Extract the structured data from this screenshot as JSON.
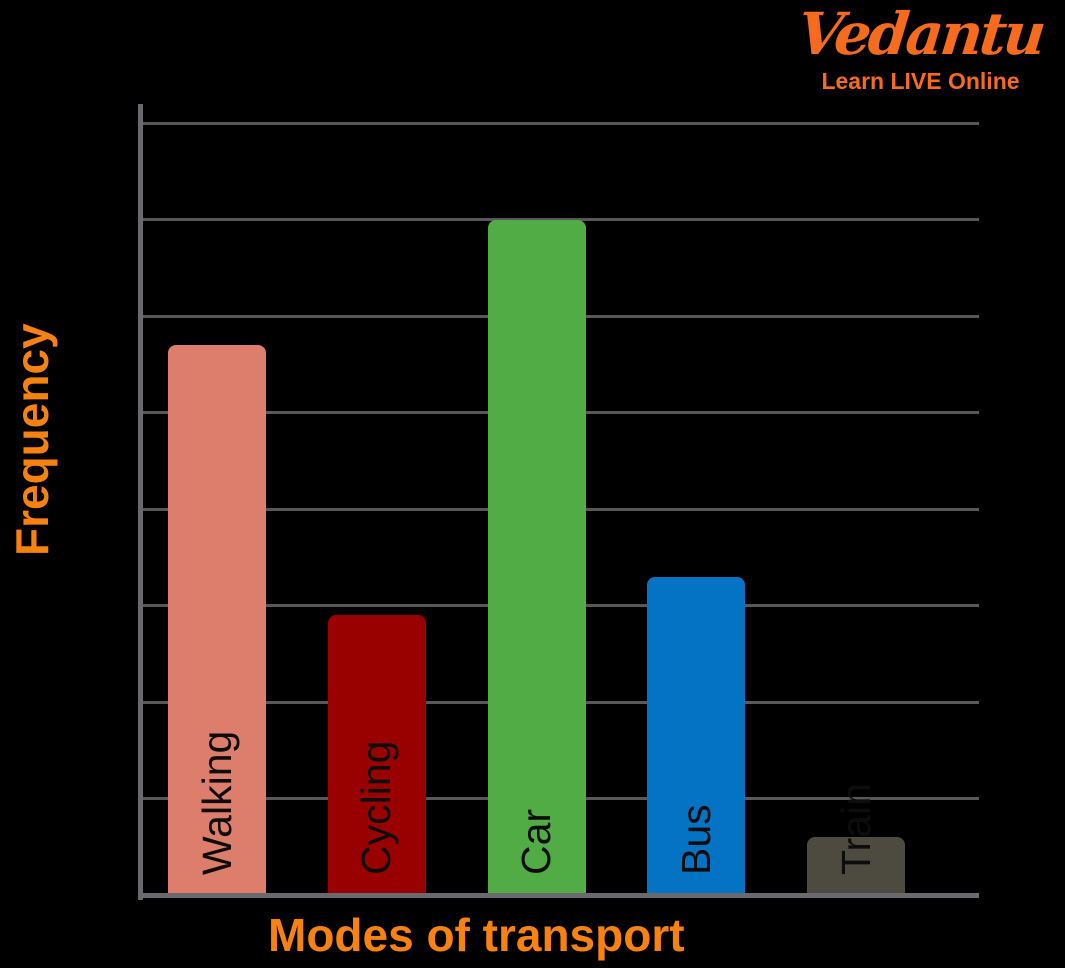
{
  "page": {
    "background_color": "#000000"
  },
  "logo": {
    "brand": "Vedantu",
    "tagline": "Learn LIVE Online",
    "color": "#F66B1E"
  },
  "chart_data": {
    "type": "bar",
    "title": "",
    "xlabel": "Modes of transport",
    "ylabel": "Frequency",
    "categories": [
      "Walking",
      "Cycling",
      "Car",
      "Bus",
      "Train"
    ],
    "values": [
      5.7,
      2.9,
      7.0,
      3.3,
      0.6
    ],
    "bar_colors": [
      "#DC7E6B",
      "#990000",
      "#52AC45",
      "#0573C4",
      "#4D4B40"
    ],
    "ylim": [
      0,
      8
    ],
    "grid": {
      "orientation": "horizontal",
      "count": 8,
      "interval": 1,
      "tick_labels_shown": false
    },
    "legend_position": "none",
    "bar_label_placement": "rotated-vertical-inside-bar-near-baseline",
    "axis_label_color": "#F8820F",
    "bar_label_color": "#0d0d0d",
    "gridline_color": "#58585a",
    "axis_color": "#6a6a6e"
  }
}
